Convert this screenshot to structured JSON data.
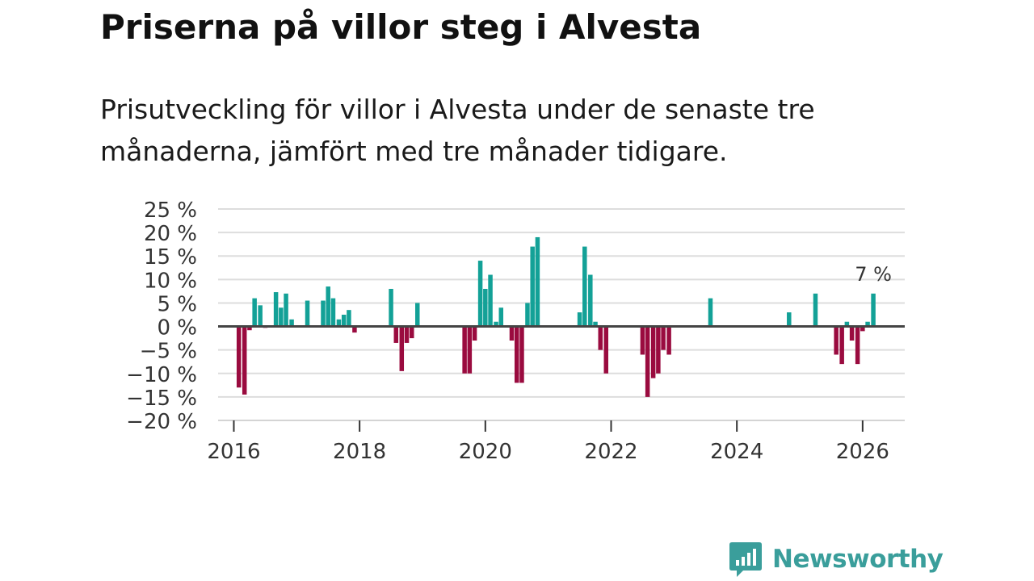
{
  "header": {
    "title": "Priserna på villor steg i Alvesta",
    "subtitle": "Prisutveckling för villor i Alvesta under de senaste tre månaderna, jämfört med tre månader tidigare."
  },
  "chart_data": {
    "type": "bar",
    "title": "Priserna på villor steg i Alvesta",
    "subtitle": "Prisutveckling för villor i Alvesta under de senaste tre månaderna, jämfört med tre månader tidigare.",
    "xlabel": "",
    "ylabel": "",
    "ylim": [
      -20,
      25
    ],
    "yticks": [
      25,
      20,
      15,
      10,
      5,
      0,
      -5,
      -10,
      -15,
      -20
    ],
    "ytick_labels": [
      "25 %",
      "20 %",
      "15 %",
      "10 %",
      "5 %",
      "0 %",
      "−5 %",
      "−10 %",
      "−15 %",
      "−20 %"
    ],
    "xlim": [
      2015.75,
      2026.67
    ],
    "xticks": [
      2016,
      2018,
      2020,
      2022,
      2024,
      2026
    ],
    "xtick_labels": [
      "2016",
      "2018",
      "2020",
      "2022",
      "2024",
      "2026"
    ],
    "grid": true,
    "colors": {
      "positive": "#13a197",
      "negative": "#9a0b3f",
      "zero_line": "#444444",
      "grid": "#dddddd"
    },
    "annotation": {
      "text": "7 %",
      "x": 2026.17,
      "y": 7
    },
    "series": [
      {
        "name": "Prisutveckling",
        "x": [
          2016.08,
          2016.17,
          2016.25,
          2016.33,
          2016.42,
          2016.5,
          2016.67,
          2016.75,
          2016.83,
          2016.92,
          2017.17,
          2017.42,
          2017.5,
          2017.58,
          2017.67,
          2017.75,
          2017.83,
          2017.92,
          2018.5,
          2018.58,
          2018.67,
          2018.75,
          2018.83,
          2018.92,
          2019.67,
          2019.75,
          2019.83,
          2019.92,
          2020.0,
          2020.08,
          2020.17,
          2020.25,
          2020.42,
          2020.5,
          2020.58,
          2020.67,
          2020.75,
          2020.83,
          2021.5,
          2021.58,
          2021.67,
          2021.75,
          2021.83,
          2021.92,
          2022.5,
          2022.58,
          2022.67,
          2022.75,
          2022.83,
          2022.92,
          2023.58,
          2024.83,
          2025.25,
          2025.58,
          2025.67,
          2025.75,
          2025.83,
          2025.92,
          2026.0,
          2026.08,
          2026.17
        ],
        "values": [
          -13,
          -14.5,
          -0.8,
          6,
          4.5,
          -0.3,
          7.3,
          4,
          7,
          1.5,
          5.5,
          5.5,
          8.5,
          6,
          1.5,
          2.5,
          3.5,
          -1.3,
          8,
          -3.5,
          -9.5,
          -3.5,
          -2.5,
          5,
          -10,
          -10,
          -3,
          14,
          8,
          11,
          1,
          4,
          -3,
          -12,
          -12,
          5,
          17,
          19,
          3,
          17,
          11,
          1,
          -5,
          -10,
          -6,
          -15,
          -11,
          -10,
          -5,
          -6,
          6,
          3,
          7,
          -6,
          -8,
          1,
          -3,
          -8,
          -1,
          1,
          7
        ]
      }
    ]
  },
  "brand": {
    "name": "Newsworthy",
    "icon": "newsworthy-logo-icon"
  }
}
